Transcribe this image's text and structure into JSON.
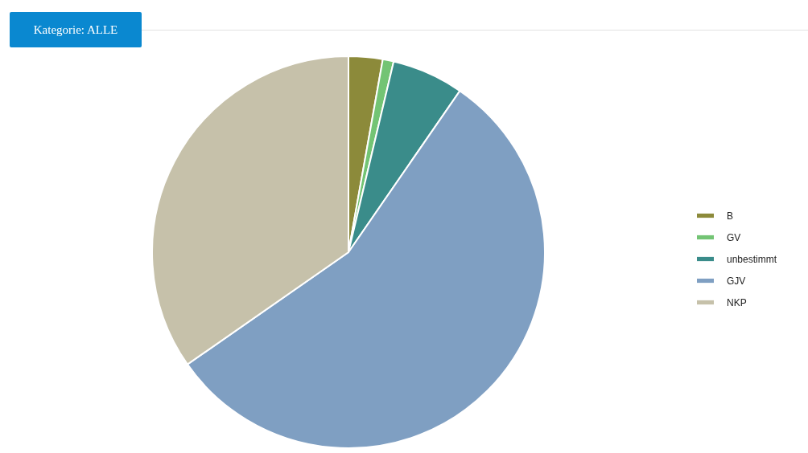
{
  "chart_data": {
    "type": "pie",
    "title": "Kategorie: ALLE",
    "categories": [
      "B",
      "GV",
      "unbestimmt",
      "GJV",
      "NKP"
    ],
    "values": [
      2.8,
      0.9,
      5.9,
      55.7,
      34.7
    ],
    "colors": [
      "#8c8a3a",
      "#73c474",
      "#3a8c8a",
      "#7f9fc2",
      "#c6c1aa"
    ],
    "legend": "right"
  }
}
